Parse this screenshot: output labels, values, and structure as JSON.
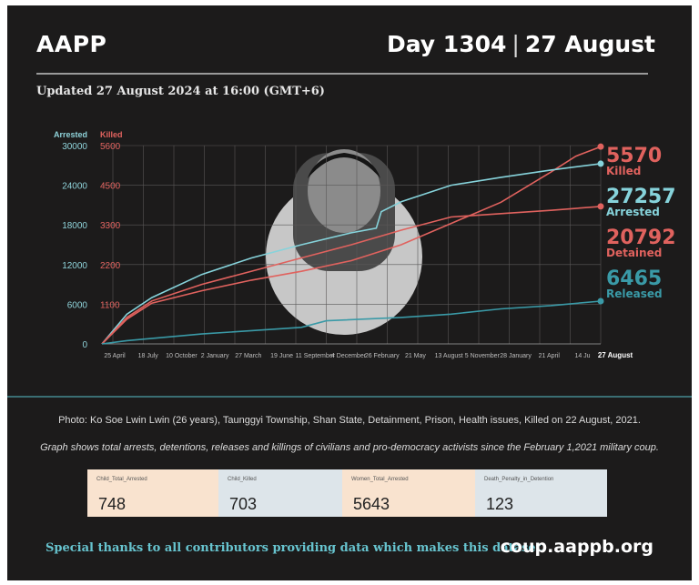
{
  "header": {
    "brand": "AAPP",
    "day": "Day 1304",
    "separator": "|",
    "date": "27 August",
    "updated": "Updated 27 August 2024 at 16:00 (GMT+6)"
  },
  "chart_data": {
    "type": "line",
    "axis_titles": {
      "left": "Arrested",
      "right": "Killed"
    },
    "y_left_ticks": [
      "30000",
      "24000",
      "18000",
      "12000",
      "6000",
      "0"
    ],
    "y_right_ticks": [
      "5600",
      "4500",
      "3300",
      "2200",
      "1100"
    ],
    "y_left_max": 30000,
    "y_right_max": 5600,
    "x_ticks": [
      "25 April",
      "18 July",
      "10 October",
      "2 January",
      "27 March",
      "19 June",
      "11 September",
      "4 December",
      "26 February",
      "21 May",
      "13 August",
      "5 November",
      "28 January",
      "21 April",
      "14 Ju"
    ],
    "x_end_label": "27 August",
    "grid": true,
    "series": [
      {
        "name": "Killed",
        "axis": "right",
        "final": "5570",
        "color": "#e0625e",
        "x": [
          0,
          0.05,
          0.1,
          0.2,
          0.3,
          0.4,
          0.5,
          0.6,
          0.7,
          0.8,
          0.9,
          0.95,
          1.0
        ],
        "y": [
          0,
          700,
          1150,
          1500,
          1800,
          2050,
          2350,
          2800,
          3400,
          4000,
          4850,
          5300,
          5570
        ]
      },
      {
        "name": "Arrested",
        "axis": "left",
        "final": "27257",
        "color": "#86d3db",
        "x": [
          0,
          0.05,
          0.1,
          0.2,
          0.3,
          0.4,
          0.5,
          0.55,
          0.56,
          0.6,
          0.7,
          0.8,
          0.9,
          1.0
        ],
        "y": [
          0,
          4500,
          7000,
          10500,
          13000,
          15000,
          16800,
          17500,
          20000,
          21500,
          24000,
          25200,
          26300,
          27257
        ]
      },
      {
        "name": "Detained",
        "axis": "left",
        "final": "20792",
        "color": "#e0625e",
        "x": [
          0,
          0.05,
          0.1,
          0.2,
          0.3,
          0.4,
          0.5,
          0.6,
          0.7,
          0.8,
          0.9,
          1.0
        ],
        "y": [
          0,
          4000,
          6500,
          9000,
          11000,
          13000,
          15000,
          17200,
          19200,
          19700,
          20200,
          20792
        ]
      },
      {
        "name": "Released",
        "axis": "left",
        "final": "6465",
        "color": "#3a9aa7",
        "x": [
          0,
          0.05,
          0.2,
          0.4,
          0.45,
          0.6,
          0.7,
          0.8,
          0.9,
          1.0
        ],
        "y": [
          0,
          500,
          1500,
          2500,
          3500,
          4000,
          4500,
          5300,
          5800,
          6465
        ]
      }
    ]
  },
  "photo_caption": "Photo: Ko Soe Lwin Lwin (26 years), Taunggyi Township, Shan State, Detainment, Prison, Health issues, Killed on 22 August, 2021.",
  "description": "Graph shows total arrests, detentions, releases and killings of civilians and pro-democracy activists since the February 1,2021 military coup.",
  "stats": [
    {
      "label": "Child_Total_Arrested",
      "value": "748",
      "bg": "#f9e3cf"
    },
    {
      "label": "Child_Killed",
      "value": "703",
      "bg": "#dde5ea"
    },
    {
      "label": "Women_Total_Arrested",
      "value": "5643",
      "bg": "#f9e3cf"
    },
    {
      "label": "Death_Penalty_in_Detention",
      "value": "123",
      "bg": "#dde5ea"
    }
  ],
  "footer": {
    "thanks": "Special thanks to all contributors providing data which makes this dataset.",
    "site": "coup.aappb.org"
  }
}
